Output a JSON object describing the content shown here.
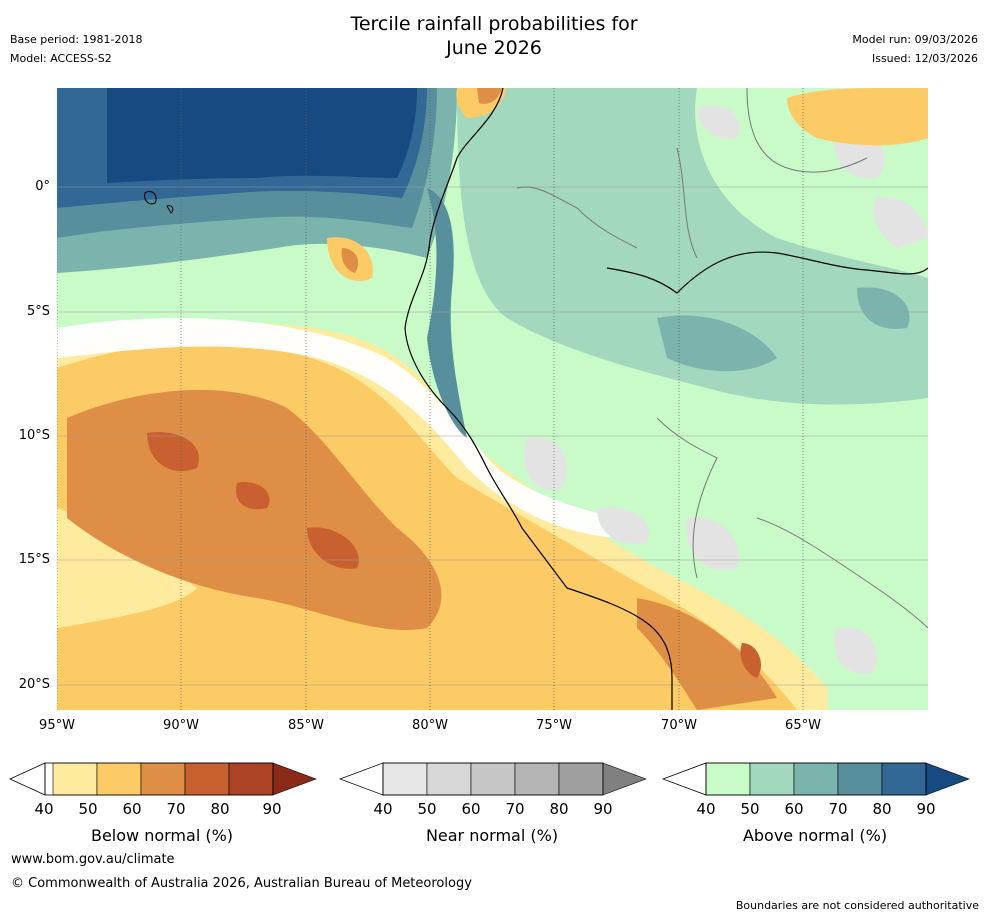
{
  "title_line1": "Tercile rainfall probabilities for",
  "title_line2": "June 2026",
  "base_period": "Base period: 1981-2018",
  "model": "Model: ACCESS-S2",
  "model_run": "Model run: 09/03/2026",
  "issued": "Issued: 12/03/2026",
  "lat_labels": [
    "0°",
    "5°S",
    "10°S",
    "15°S",
    "20°S"
  ],
  "lon_labels": [
    "95°W",
    "90°W",
    "85°W",
    "80°W",
    "75°W",
    "70°W",
    "65°W"
  ],
  "colorbars": {
    "below": {
      "title": "Below normal (%)",
      "ticks": [
        "40",
        "50",
        "60",
        "70",
        "80",
        "90"
      ],
      "colors": [
        "#ffeb9e",
        "#fdcb66",
        "#df8f45",
        "#c9602f",
        "#ad4325",
        "#8a2a17"
      ]
    },
    "near": {
      "title": "Near normal (%)",
      "ticks": [
        "40",
        "50",
        "60",
        "70",
        "80",
        "90"
      ],
      "colors": [
        "#e6e6e6",
        "#d7d7d7",
        "#c6c6c6",
        "#b4b4b4",
        "#9f9f9f",
        "#808080"
      ]
    },
    "above": {
      "title": "Above normal (%)",
      "ticks": [
        "40",
        "50",
        "60",
        "70",
        "80",
        "90"
      ],
      "colors": [
        "#c9fbc9",
        "#a2d8bd",
        "#7bb4ad",
        "#588f9d",
        "#326896",
        "#164a81"
      ]
    }
  },
  "website": "www.bom.gov.au/climate",
  "copyright": "© Commonwealth of Australia 2026, Australian Bureau of Meteorology",
  "disclaimer": "Boundaries are not considered authoritative"
}
